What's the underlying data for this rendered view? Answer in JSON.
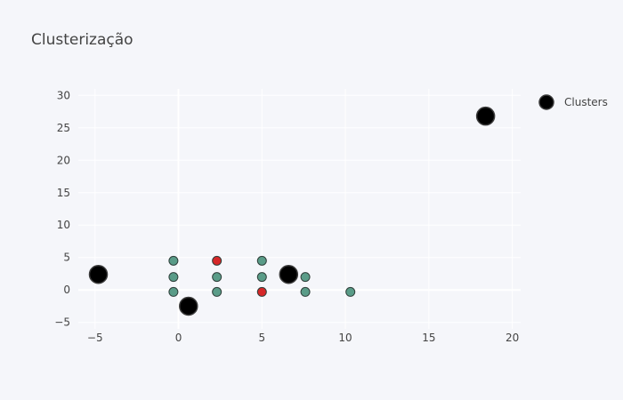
{
  "chart_data": {
    "type": "scatter",
    "title": "Clusterização",
    "xlabel": "",
    "ylabel": "",
    "xlim": [
      -6,
      20.5
    ],
    "ylim": [
      -6,
      31
    ],
    "x_ticks": [
      -5,
      0,
      5,
      10,
      15,
      20
    ],
    "y_ticks": [
      -5,
      0,
      5,
      10,
      15,
      20,
      25,
      30
    ],
    "x_tick_labels": [
      "−5",
      "0",
      "5",
      "10",
      "15",
      "20"
    ],
    "y_tick_labels": [
      "−5",
      "0",
      "5",
      "10",
      "15",
      "20",
      "25",
      "30"
    ],
    "grid": true,
    "legend_position": "top-right",
    "series": [
      {
        "kind": "points",
        "color": "#5a9c88",
        "points": [
          {
            "x": -0.3,
            "y": 4.5
          },
          {
            "x": -0.3,
            "y": 2.0
          },
          {
            "x": -0.3,
            "y": -0.3
          },
          {
            "x": 2.3,
            "y": 2.0
          },
          {
            "x": 2.3,
            "y": -0.3
          },
          {
            "x": 5.0,
            "y": 4.5
          },
          {
            "x": 5.0,
            "y": 2.0
          },
          {
            "x": 7.6,
            "y": 2.0
          },
          {
            "x": 7.6,
            "y": -0.3
          },
          {
            "x": 10.3,
            "y": -0.3
          }
        ]
      },
      {
        "kind": "points",
        "color": "#d62728",
        "points": [
          {
            "x": 2.3,
            "y": 4.5
          },
          {
            "x": 5.0,
            "y": -0.3
          }
        ]
      },
      {
        "name": "Clusters",
        "kind": "centroids",
        "color": "#000000",
        "points": [
          {
            "x": -4.8,
            "y": 2.4
          },
          {
            "x": 0.6,
            "y": -2.5
          },
          {
            "x": 6.6,
            "y": 2.4
          },
          {
            "x": 18.4,
            "y": 26.8
          }
        ]
      }
    ]
  }
}
